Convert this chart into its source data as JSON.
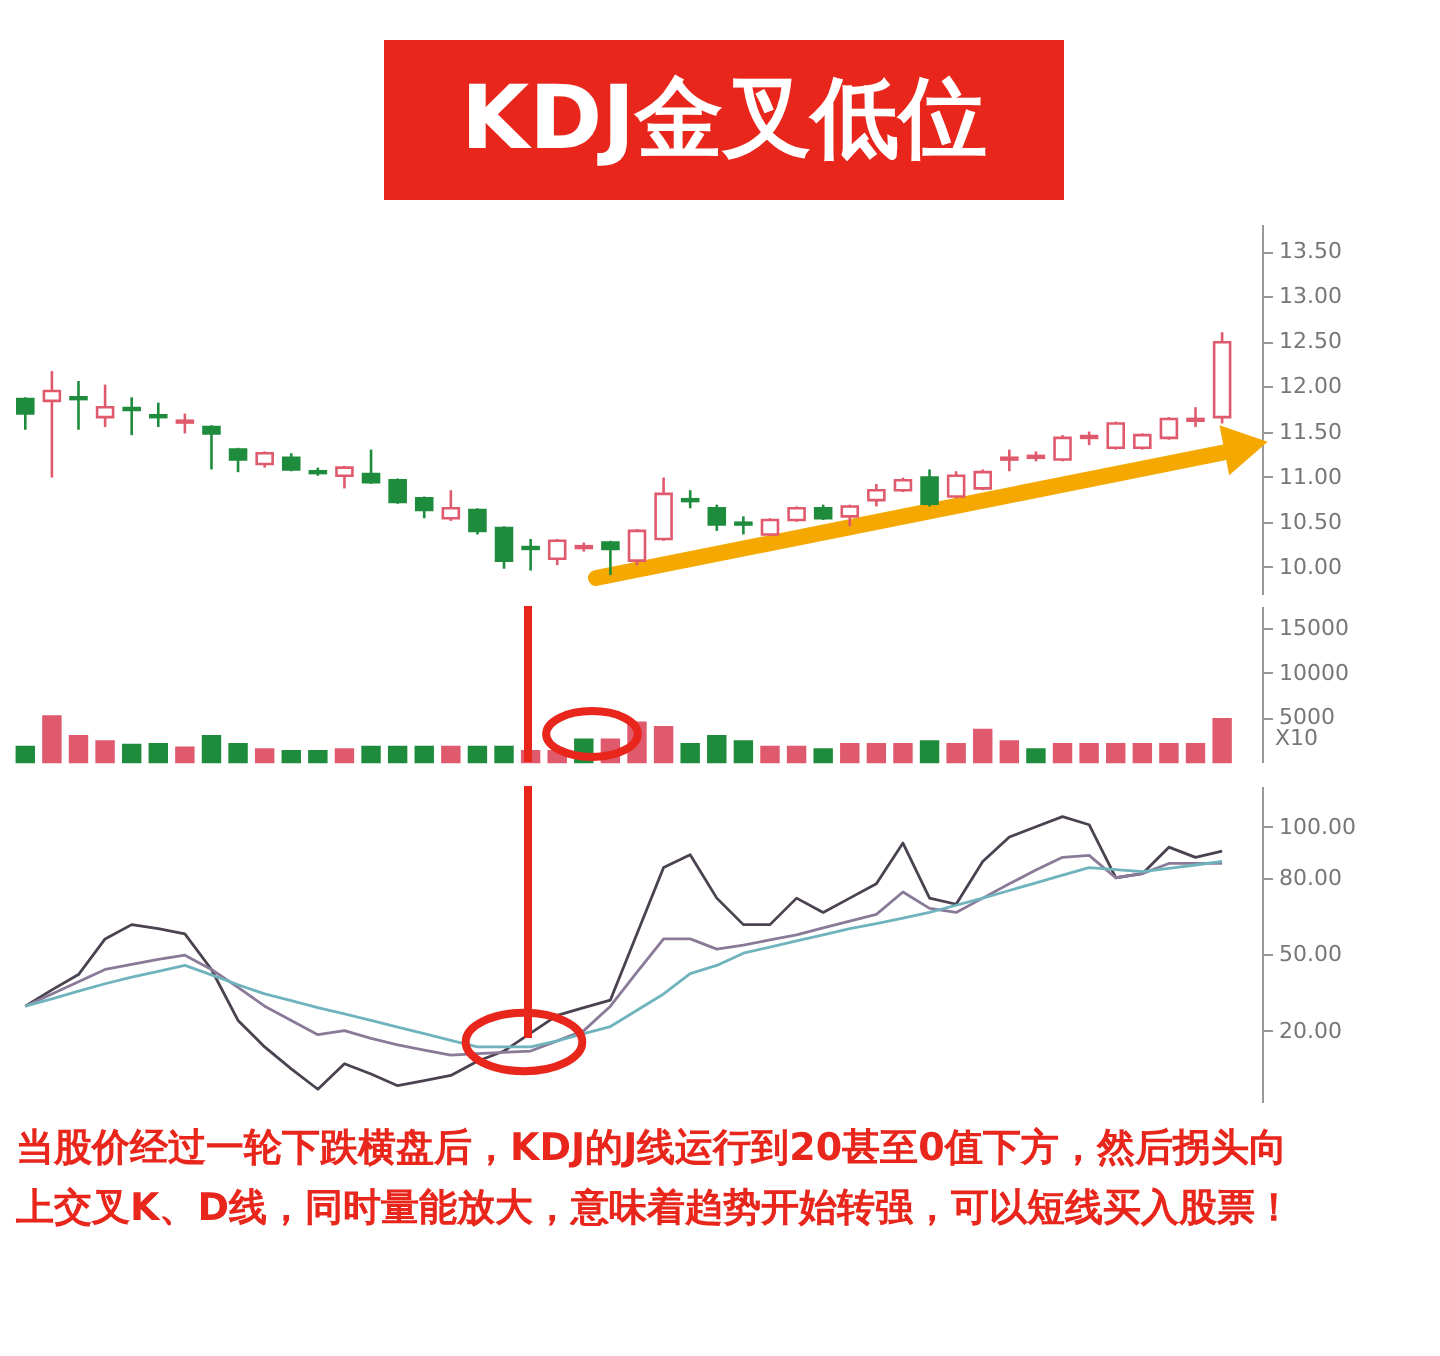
{
  "chart_data": [
    {
      "type": "candlestick",
      "title": "KDJ金叉低位",
      "categories": [
        null,
        null,
        null,
        null,
        null,
        null,
        null,
        null,
        null,
        null,
        null,
        null,
        null,
        null,
        null,
        null,
        null,
        null,
        null,
        null,
        null,
        null,
        null,
        null,
        null,
        null,
        null,
        null,
        null,
        null,
        null,
        null,
        null,
        null,
        null,
        null,
        null,
        null,
        null,
        null,
        null,
        null,
        null,
        null,
        null,
        null
      ],
      "ohlc": [
        [
          11.86,
          11.88,
          11.52,
          11.7
        ],
        [
          11.84,
          12.17,
          10.99,
          11.95
        ],
        [
          11.88,
          12.06,
          11.52,
          11.86
        ],
        [
          11.66,
          12.02,
          11.55,
          11.77
        ],
        [
          11.76,
          11.88,
          11.46,
          11.74
        ],
        [
          11.68,
          11.82,
          11.55,
          11.66
        ],
        [
          11.6,
          11.7,
          11.48,
          11.62
        ],
        [
          11.55,
          11.57,
          11.08,
          11.48
        ],
        [
          11.3,
          11.32,
          11.05,
          11.19
        ],
        [
          11.14,
          11.28,
          11.1,
          11.26
        ],
        [
          11.21,
          11.26,
          11.06,
          11.08
        ],
        [
          11.06,
          11.1,
          11.01,
          11.04
        ],
        [
          11.01,
          11.12,
          10.87,
          11.1
        ],
        [
          11.03,
          11.3,
          10.92,
          10.94
        ],
        [
          10.96,
          10.98,
          10.7,
          10.72
        ],
        [
          10.76,
          10.78,
          10.54,
          10.63
        ],
        [
          10.54,
          10.85,
          10.51,
          10.65
        ],
        [
          10.63,
          10.65,
          10.36,
          10.4
        ],
        [
          10.43,
          10.45,
          9.98,
          10.07
        ],
        [
          10.22,
          10.31,
          9.96,
          10.2
        ],
        [
          10.09,
          10.31,
          10.02,
          10.29
        ],
        [
          10.21,
          10.27,
          10.17,
          10.23
        ],
        [
          10.27,
          10.29,
          9.91,
          10.2
        ],
        [
          10.07,
          10.42,
          10.02,
          10.4
        ],
        [
          10.31,
          10.99,
          10.29,
          10.81
        ],
        [
          10.75,
          10.85,
          10.65,
          10.73
        ],
        [
          10.65,
          10.69,
          10.4,
          10.47
        ],
        [
          10.49,
          10.56,
          10.36,
          10.47
        ],
        [
          10.36,
          10.54,
          10.34,
          10.52
        ],
        [
          10.52,
          10.67,
          10.5,
          10.65
        ],
        [
          10.65,
          10.69,
          10.52,
          10.54
        ],
        [
          10.56,
          10.69,
          10.45,
          10.67
        ],
        [
          10.74,
          10.92,
          10.67,
          10.85
        ],
        [
          10.85,
          10.99,
          10.83,
          10.96
        ],
        [
          10.99,
          11.08,
          10.67,
          10.7
        ],
        [
          10.78,
          11.06,
          10.76,
          11.01
        ],
        [
          10.87,
          11.08,
          10.85,
          11.05
        ],
        [
          11.19,
          11.3,
          11.06,
          11.21
        ],
        [
          11.21,
          11.28,
          11.17,
          11.23
        ],
        [
          11.19,
          11.46,
          11.17,
          11.43
        ],
        [
          11.43,
          11.5,
          11.35,
          11.45
        ],
        [
          11.32,
          11.61,
          11.3,
          11.59
        ],
        [
          11.32,
          11.48,
          11.3,
          11.46
        ],
        [
          11.43,
          11.66,
          11.41,
          11.64
        ],
        [
          11.62,
          11.77,
          11.55,
          11.64
        ],
        [
          11.66,
          12.6,
          11.59,
          12.49
        ]
      ],
      "colors": [
        "#1e8c3c",
        "#e05a6e",
        "#1e8c3c",
        "#e05a6e",
        "#1e8c3c",
        "#1e8c3c",
        "#e05a6e",
        "#1e8c3c",
        "#1e8c3c",
        "#e05a6e",
        "#1e8c3c",
        "#1e8c3c",
        "#e05a6e",
        "#1e8c3c",
        "#1e8c3c",
        "#1e8c3c",
        "#e05a6e",
        "#1e8c3c",
        "#1e8c3c",
        "#1e8c3c",
        "#e05a6e",
        "#e05a6e",
        "#1e8c3c",
        "#e05a6e",
        "#e05a6e",
        "#1e8c3c",
        "#1e8c3c",
        "#1e8c3c",
        "#e05a6e",
        "#e05a6e",
        "#1e8c3c",
        "#e05a6e",
        "#e05a6e",
        "#e05a6e",
        "#1e8c3c",
        "#e05a6e",
        "#e05a6e",
        "#e05a6e",
        "#e05a6e",
        "#e05a6e",
        "#e05a6e",
        "#e05a6e",
        "#e05a6e",
        "#e05a6e",
        "#e05a6e",
        "#e05a6e"
      ],
      "ylim": [
        9.7,
        13.8
      ],
      "yticks": [
        {
          "value": 10,
          "label": "10.00"
        },
        {
          "value": 10.5,
          "label": "10.50"
        },
        {
          "value": 11,
          "label": "11.00"
        },
        {
          "value": 11.5,
          "label": "11.50"
        },
        {
          "value": 12,
          "label": "12.00"
        },
        {
          "value": 12.5,
          "label": "12.50"
        },
        {
          "value": 13,
          "label": "13.00"
        },
        {
          "value": 13.5,
          "label": "13.50"
        }
      ],
      "tick_labels": "y"
    },
    {
      "type": "bar",
      "ylabel": "X10",
      "categories": [
        null,
        null,
        null,
        null,
        null,
        null,
        null,
        null,
        null,
        null,
        null,
        null,
        null,
        null,
        null,
        null,
        null,
        null,
        null,
        null,
        null,
        null,
        null,
        null,
        null,
        null,
        null,
        null,
        null,
        null,
        null,
        null,
        null,
        null,
        null,
        null,
        null,
        null,
        null,
        null,
        null,
        null,
        null,
        null,
        null,
        null
      ],
      "values": [
        1700,
        5100,
        2900,
        2300,
        1900,
        2000,
        1600,
        2900,
        2000,
        1400,
        1200,
        1200,
        1400,
        1700,
        1700,
        1700,
        1700,
        1700,
        1700,
        1200,
        1200,
        2500,
        2500,
        4400,
        3900,
        2000,
        2900,
        2300,
        1700,
        1700,
        1400,
        2000,
        2000,
        2000,
        2300,
        2000,
        3600,
        2300,
        1400,
        2000,
        2000,
        2000,
        2000,
        2000,
        2000,
        4800
      ],
      "colors": [
        "#1e8c3c",
        "#e05a6e",
        "#e05a6e",
        "#e05a6e",
        "#1e8c3c",
        "#1e8c3c",
        "#e05a6e",
        "#1e8c3c",
        "#1e8c3c",
        "#e05a6e",
        "#1e8c3c",
        "#1e8c3c",
        "#e05a6e",
        "#1e8c3c",
        "#1e8c3c",
        "#1e8c3c",
        "#e05a6e",
        "#1e8c3c",
        "#1e8c3c",
        "#e05a6e",
        "#e05a6e",
        "#1e8c3c",
        "#e05a6e",
        "#e05a6e",
        "#e05a6e",
        "#1e8c3c",
        "#1e8c3c",
        "#1e8c3c",
        "#e05a6e",
        "#e05a6e",
        "#1e8c3c",
        "#e05a6e",
        "#e05a6e",
        "#e05a6e",
        "#1e8c3c",
        "#e05a6e",
        "#e05a6e",
        "#e05a6e",
        "#1e8c3c",
        "#e05a6e",
        "#e05a6e",
        "#e05a6e",
        "#e05a6e",
        "#e05a6e",
        "#e05a6e",
        "#e05a6e"
      ],
      "ylim": [
        0,
        17500
      ],
      "yticks": [
        5000,
        10000,
        15000
      ],
      "tick_labels": "y"
    },
    {
      "type": "line",
      "categories": [
        null,
        null,
        null,
        null,
        null,
        null,
        null,
        null,
        null,
        null,
        null,
        null,
        null,
        null,
        null,
        null,
        null,
        null,
        null,
        null,
        null,
        null,
        null,
        null,
        null,
        null,
        null,
        null,
        null,
        null,
        null,
        null,
        null,
        null,
        null,
        null,
        null,
        null,
        null,
        null,
        null,
        null,
        null,
        null,
        null,
        null
      ],
      "ylim": [
        -8,
        116
      ],
      "yticks": [
        {
          "value": 20,
          "label": "20.00"
        },
        {
          "value": 50,
          "label": "50.00"
        },
        {
          "value": 80,
          "label": "80.00"
        },
        {
          "value": 100,
          "label": "100.00"
        }
      ],
      "tick_labels": "y",
      "line_style": "solid",
      "marker": "none",
      "series": [
        {
          "color": "#4a4250",
          "values": [
            29.6,
            36,
            42,
            56,
            61.6,
            60,
            58,
            44,
            24,
            13.6,
            5,
            -3,
            7,
            3,
            -1.6,
            0.4,
            2.4,
            8,
            12,
            19,
            26,
            29,
            32,
            58,
            84,
            89,
            72,
            61.6,
            61.6,
            72,
            66.4,
            72,
            77.6,
            93.6,
            72,
            69.6,
            86.4,
            96,
            100,
            104,
            100.8,
            80,
            81.6,
            92,
            88,
            90.4
          ]
        },
        {
          "color": "#8a7a98",
          "values": [
            29.6,
            34.4,
            39.2,
            44,
            46,
            48,
            49.6,
            44,
            37,
            29.6,
            24,
            18.4,
            20,
            17,
            14.4,
            12.4,
            10.4,
            11,
            11.5,
            12,
            16,
            20,
            29.6,
            43,
            56,
            56,
            52,
            53.6,
            55.6,
            57.6,
            60.3,
            63,
            65.6,
            74.4,
            68,
            66.4,
            72,
            77.6,
            83,
            88,
            88.8,
            80,
            81.6,
            85.6,
            85.6,
            85.6
          ]
        },
        {
          "color": "#6fb3bd",
          "values": [
            29.6,
            32.5,
            35.5,
            38.4,
            41,
            43.3,
            45.6,
            41.9,
            38,
            34.4,
            31.8,
            29,
            26.6,
            24,
            21.4,
            18.8,
            16.2,
            13.6,
            13.6,
            13.6,
            16,
            18.8,
            21.6,
            28,
            34.4,
            42.4,
            45.6,
            50.4,
            52.8,
            55.2,
            57.6,
            60,
            62,
            64.2,
            66.4,
            69.2,
            72,
            75,
            78,
            81,
            84,
            83.2,
            82.4,
            83.7,
            85,
            86.4
          ]
        }
      ],
      "annotations": [
        "当股价经过一轮下跌横盘后，KDJ的J线运行到20甚至0值下方，然后拐头向上交叉K、D线，同时量能放大，意味着趋势开始转强，可以短线买入股票！"
      ]
    }
  ]
}
